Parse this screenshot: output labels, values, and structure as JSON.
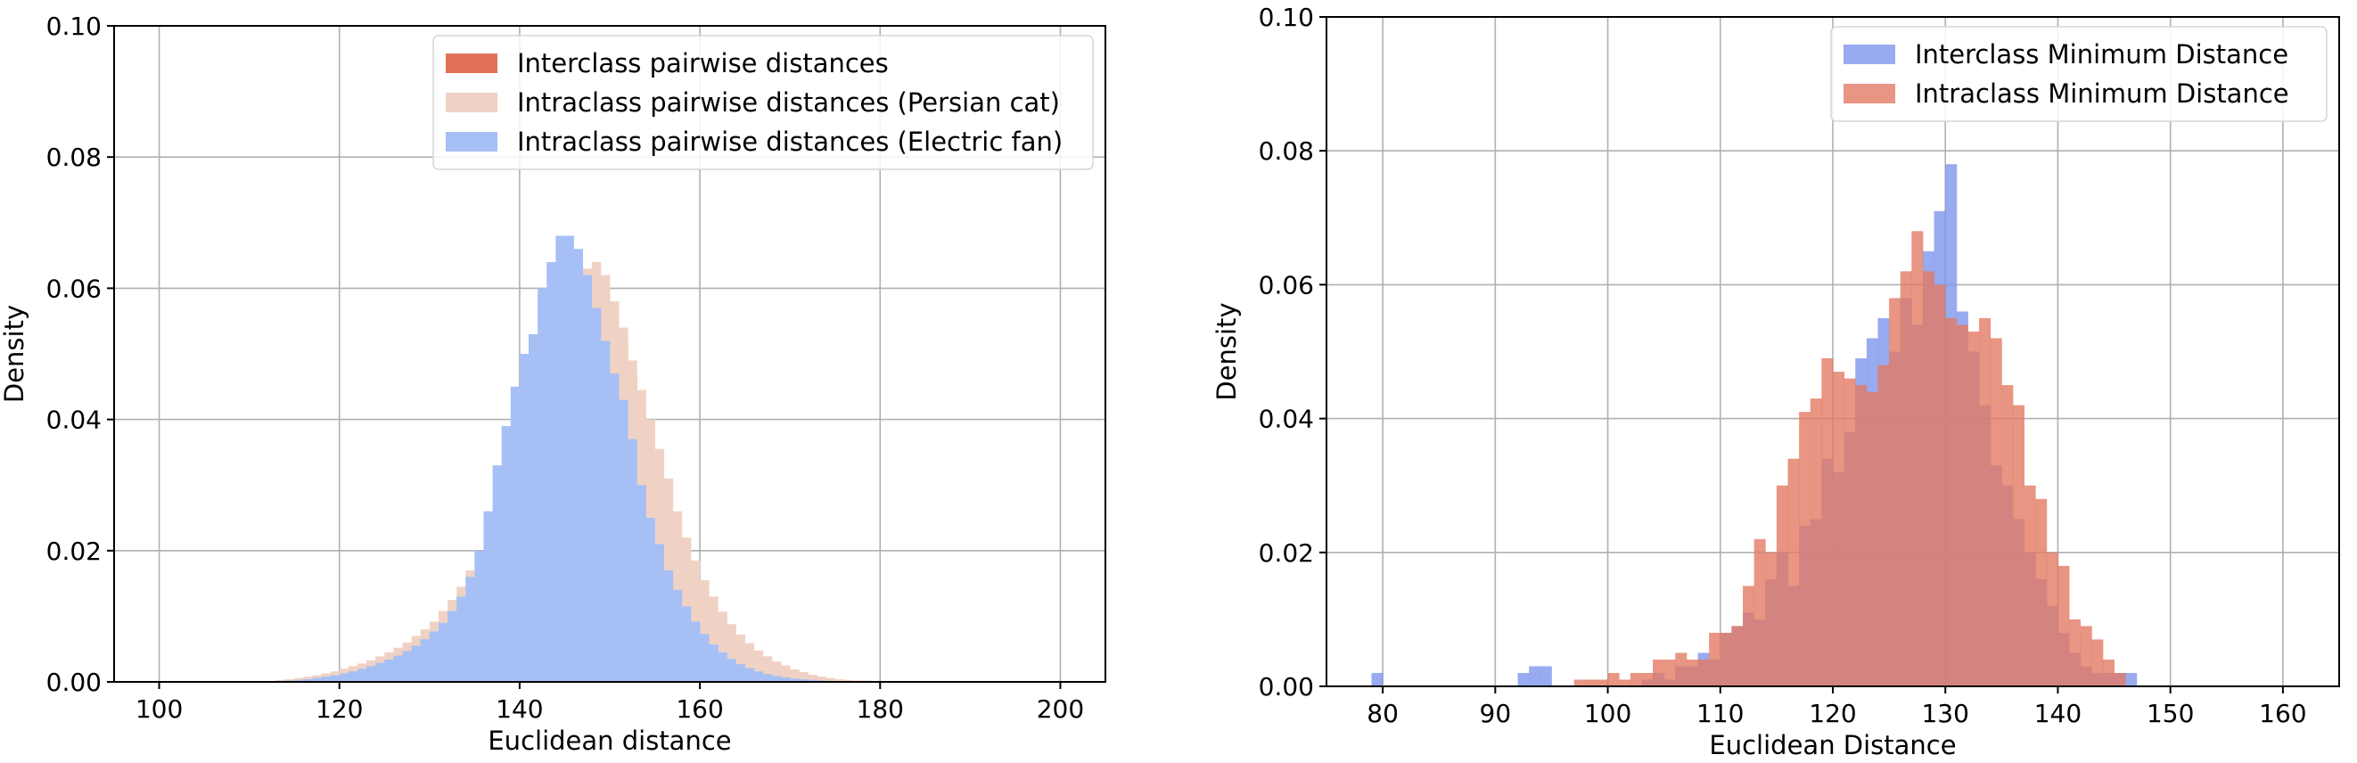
{
  "chart_data": [
    {
      "type": "histogram",
      "xlabel": "Euclidean distance",
      "ylabel": "Density",
      "xlim": [
        95,
        205
      ],
      "ylim": [
        0,
        0.1
      ],
      "xticks": [
        "100",
        "120",
        "140",
        "160",
        "180",
        "200"
      ],
      "yticks": [
        "0.00",
        "0.02",
        "0.04",
        "0.06",
        "0.08",
        "0.10"
      ],
      "grid": true,
      "legend_position": "top-right",
      "bins": {
        "start": 113,
        "width": 1
      },
      "series": [
        {
          "name": "Interclass pairwise distances",
          "color": "#e07058",
          "opacity": 1.0,
          "values": [
            0.0002,
            0.0003,
            0.0004,
            0.0005,
            0.0006,
            0.0008,
            0.001,
            0.0012,
            0.0014,
            0.0016,
            0.0019,
            0.0023,
            0.0027,
            0.0031,
            0.0037,
            0.0044,
            0.0052,
            0.0062,
            0.0075,
            0.009,
            0.011,
            0.013,
            0.016,
            0.019,
            0.023,
            0.031,
            0.036,
            0.041,
            0.047,
            0.052,
            0.058,
            0.06,
            0.06,
            0.061,
            0.062,
            0.06,
            0.059,
            0.056,
            0.052,
            0.047,
            0.041,
            0.035,
            0.029,
            0.024,
            0.019,
            0.015,
            0.012,
            0.009,
            0.007,
            0.0055,
            0.0042,
            0.0032,
            0.0025,
            0.0019,
            0.0014,
            0.0011,
            0.0008,
            0.0006,
            0.0005,
            0.0004,
            0.0003,
            0.0002,
            0.0002,
            0.0001
          ]
        },
        {
          "name": "Intraclass pairwise distances (Persian cat)",
          "color": "#f0d2c4",
          "opacity": 1.0,
          "values": [
            0.0003,
            0.0004,
            0.0006,
            0.0008,
            0.001,
            0.0013,
            0.0016,
            0.002,
            0.0024,
            0.0028,
            0.0033,
            0.0039,
            0.0045,
            0.0052,
            0.006,
            0.007,
            0.008,
            0.0092,
            0.0108,
            0.0125,
            0.0145,
            0.017,
            0.0195,
            0.0225,
            0.026,
            0.03,
            0.034,
            0.038,
            0.042,
            0.047,
            0.051,
            0.055,
            0.058,
            0.061,
            0.063,
            0.064,
            0.062,
            0.058,
            0.054,
            0.049,
            0.0445,
            0.04,
            0.0355,
            0.031,
            0.026,
            0.022,
            0.0185,
            0.0155,
            0.013,
            0.0107,
            0.0088,
            0.0072,
            0.0059,
            0.0048,
            0.0039,
            0.0031,
            0.0025,
            0.0019,
            0.0015,
            0.0011,
            0.0008,
            0.0006,
            0.0004,
            0.0003,
            0.0002,
            0.0002,
            0.0001
          ]
        },
        {
          "name": "Intraclass pairwise distances (Electric fan)",
          "color": "#a6c0f6",
          "opacity": 1.0,
          "values": [
            0.0001,
            0.0002,
            0.0003,
            0.0004,
            0.0006,
            0.0008,
            0.001,
            0.0013,
            0.0016,
            0.002,
            0.0024,
            0.0029,
            0.0034,
            0.004,
            0.0047,
            0.0055,
            0.0065,
            0.0077,
            0.009,
            0.0108,
            0.013,
            0.016,
            0.02,
            0.026,
            0.033,
            0.039,
            0.045,
            0.05,
            0.053,
            0.06,
            0.064,
            0.068,
            0.068,
            0.066,
            0.062,
            0.057,
            0.052,
            0.047,
            0.043,
            0.037,
            0.03,
            0.025,
            0.021,
            0.017,
            0.014,
            0.0115,
            0.0092,
            0.0073,
            0.0057,
            0.0045,
            0.0035,
            0.0027,
            0.0021,
            0.0016,
            0.0012,
            0.0009,
            0.0007,
            0.0005,
            0.0004,
            0.0003,
            0.0002,
            0.0001
          ]
        }
      ]
    },
    {
      "type": "histogram",
      "xlabel": "Euclidean Distance",
      "ylabel": "Density",
      "xlim": [
        75,
        165
      ],
      "ylim": [
        0,
        0.1
      ],
      "xticks": [
        "80",
        "90",
        "100",
        "110",
        "120",
        "130",
        "140",
        "150",
        "160"
      ],
      "yticks": [
        "0.00",
        "0.02",
        "0.04",
        "0.06",
        "0.08",
        "0.10"
      ],
      "grid": true,
      "legend_position": "top-right",
      "bins": {
        "start": 78,
        "width": 1
      },
      "series": [
        {
          "name": "Interclass Minimum Distance",
          "color": "#7e96ec",
          "opacity": 0.8,
          "values": [
            0,
            0.002,
            0,
            0,
            0,
            0,
            0,
            0,
            0,
            0,
            0,
            0,
            0,
            0,
            0.002,
            0.003,
            0.003,
            0,
            0,
            0,
            0,
            0,
            0,
            0,
            0,
            0.001,
            0.002,
            0.001,
            0.003,
            0.003,
            0.005,
            0.004,
            0.008,
            0.009,
            0.011,
            0.01,
            0.016,
            0.02,
            0.015,
            0.024,
            0.025,
            0.034,
            0.032,
            0.038,
            0.049,
            0.052,
            0.055,
            0.05,
            0.058,
            0.054,
            0.065,
            0.071,
            0.078,
            0.056,
            0.05,
            0.042,
            0.033,
            0.03,
            0.025,
            0.02,
            0.016,
            0.012,
            0.008,
            0.005,
            0.003,
            0.002,
            0.002,
            0.002,
            0.002
          ]
        },
        {
          "name": "Intraclass Minimum Distance",
          "color": "#e47a64",
          "opacity": 0.8,
          "values": [
            0,
            0,
            0,
            0,
            0,
            0,
            0,
            0,
            0,
            0,
            0,
            0,
            0,
            0,
            0,
            0,
            0,
            0,
            0,
            0.001,
            0.001,
            0.001,
            0.002,
            0.001,
            0.002,
            0.002,
            0.004,
            0.004,
            0.005,
            0.004,
            0.004,
            0.008,
            0.008,
            0.009,
            0.015,
            0.022,
            0.02,
            0.03,
            0.034,
            0.041,
            0.043,
            0.049,
            0.047,
            0.046,
            0.045,
            0.044,
            0.048,
            0.058,
            0.062,
            0.068,
            0.062,
            0.06,
            0.055,
            0.054,
            0.053,
            0.055,
            0.052,
            0.045,
            0.042,
            0.03,
            0.028,
            0.02,
            0.018,
            0.01,
            0.009,
            0.007,
            0.004,
            0.002
          ]
        }
      ]
    }
  ]
}
